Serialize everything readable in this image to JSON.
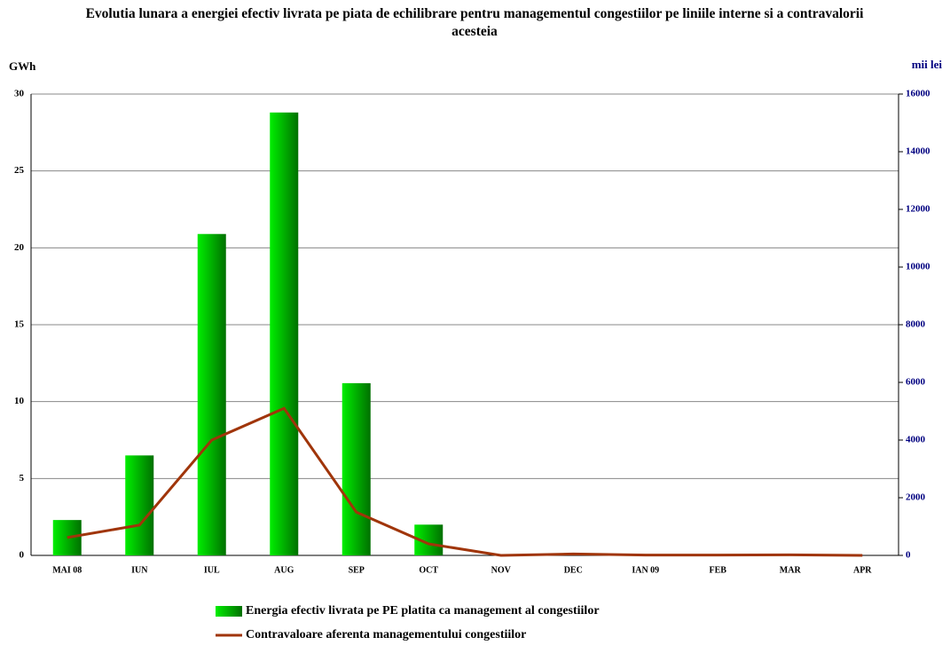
{
  "chart_data": {
    "type": "bar_line",
    "title": "Evolutia lunara a energiei efectiv livrata pe piata de echilibrare pentru managementul congestiilor pe liniile interne si a contravalorii acesteia",
    "y_label": "GWh",
    "y2_label": "mii lei",
    "categories": [
      "MAI 08",
      "IUN",
      "IUL",
      "AUG",
      "SEP",
      "OCT",
      "NOV",
      "DEC",
      "IAN 09",
      "FEB",
      "MAR",
      "APR"
    ],
    "series": [
      {
        "name": "Energia efectiv livrata pe PE platita ca management al congestiilor",
        "type": "bar",
        "color": "#00ee00",
        "values": [
          2.3,
          6.5,
          20.9,
          28.8,
          11.2,
          2.0,
          0,
          0,
          0,
          0,
          0,
          0
        ]
      },
      {
        "name": "Contravaloare aferenta managementului congestiilor",
        "type": "line",
        "axis": "y2",
        "color": "#a0350a",
        "values": [
          620,
          1050,
          4000,
          5100,
          1500,
          400,
          0,
          50,
          10,
          10,
          20,
          0
        ]
      }
    ],
    "ylim": [
      0,
      30
    ],
    "yticks": [
      0,
      5,
      10,
      15,
      20,
      25,
      30
    ],
    "y2lim": [
      0,
      16000
    ],
    "y2ticks": [
      0,
      2000,
      4000,
      6000,
      8000,
      10000,
      12000,
      14000,
      16000
    ],
    "grid": true
  }
}
